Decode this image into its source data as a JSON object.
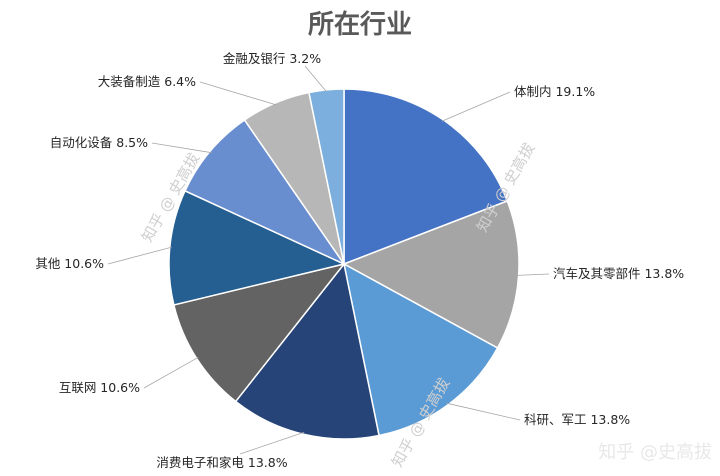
{
  "chart_data": {
    "type": "pie",
    "title": "所在行业",
    "slices": [
      {
        "label": "体制内",
        "value": 19.1,
        "value_text": "19.1%",
        "color": "#4472c4"
      },
      {
        "label": "汽车及其零部件",
        "value": 13.8,
        "value_text": "13.8%",
        "color": "#a5a5a5"
      },
      {
        "label": "科研、军工",
        "value": 13.8,
        "value_text": "13.8%",
        "color": "#5b9bd5"
      },
      {
        "label": "消费电子和家电",
        "value": 13.8,
        "value_text": "13.8%",
        "color": "#264478"
      },
      {
        "label": "互联网",
        "value": 10.6,
        "value_text": "10.6%",
        "color": "#636363"
      },
      {
        "label": "其他",
        "value": 10.6,
        "value_text": "10.6%",
        "color": "#255e91"
      },
      {
        "label": "自动化设备",
        "value": 8.5,
        "value_text": "8.5%",
        "color": "#698ed0"
      },
      {
        "label": "大装备制造",
        "value": 6.4,
        "value_text": "6.4%",
        "color": "#b7b7b7"
      },
      {
        "label": "金融及银行",
        "value": 3.2,
        "value_text": "3.2%",
        "color": "#7cafdd"
      }
    ],
    "legend": "none",
    "start_angle": "12 o'clock",
    "direction": "clockwise"
  },
  "watermarks": [
    "知乎 @ 史高拔",
    "知乎 @ 史高拔",
    "知乎 @ 史高拔",
    "知乎 @史高拔"
  ]
}
